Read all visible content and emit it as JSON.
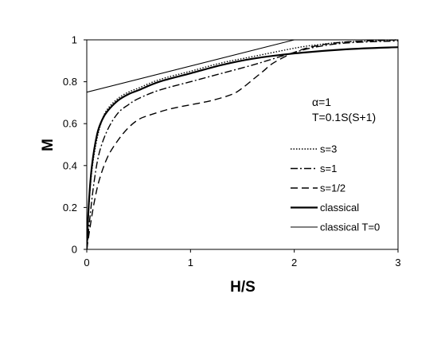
{
  "chart_data": {
    "type": "line",
    "xlabel": "H/S",
    "ylabel": "M",
    "xlim": [
      0,
      3
    ],
    "ylim": [
      0,
      1
    ],
    "xticks": [
      "0",
      "1",
      "2",
      "3"
    ],
    "yticks": [
      "0",
      "0.2",
      "0.4",
      "0.6",
      "0.8",
      "1"
    ],
    "grid": false,
    "legend_position": "right",
    "annotations": [
      "α=1",
      "T=0.1S(S+1)"
    ],
    "series": [
      {
        "name": "s=3",
        "style": "dotted",
        "x": [
          0,
          0.02,
          0.05,
          0.1,
          0.15,
          0.2,
          0.3,
          0.4,
          0.5,
          0.7,
          1.0,
          1.3,
          1.6,
          2.0,
          2.2,
          2.5,
          3.0
        ],
        "y": [
          0,
          0.2,
          0.38,
          0.53,
          0.62,
          0.67,
          0.72,
          0.75,
          0.77,
          0.81,
          0.85,
          0.89,
          0.92,
          0.96,
          0.975,
          0.99,
          1.0
        ]
      },
      {
        "name": "s=1",
        "style": "dashdot",
        "x": [
          0,
          0.03,
          0.07,
          0.12,
          0.2,
          0.3,
          0.4,
          0.5,
          0.7,
          1.0,
          1.3,
          1.6,
          1.8,
          2.0,
          2.2,
          2.5,
          3.0
        ],
        "y": [
          0,
          0.15,
          0.32,
          0.46,
          0.57,
          0.65,
          0.69,
          0.72,
          0.76,
          0.8,
          0.84,
          0.88,
          0.91,
          0.94,
          0.965,
          0.985,
          0.995
        ]
      },
      {
        "name": "s=1/2",
        "style": "dashed",
        "x": [
          0,
          0.03,
          0.07,
          0.12,
          0.2,
          0.3,
          0.4,
          0.5,
          0.6,
          0.8,
          1.0,
          1.2,
          1.4,
          1.5,
          1.6,
          1.7,
          1.8,
          2.0,
          2.2,
          2.5,
          3.0
        ],
        "y": [
          0,
          0.1,
          0.22,
          0.33,
          0.44,
          0.52,
          0.58,
          0.62,
          0.64,
          0.67,
          0.69,
          0.71,
          0.74,
          0.77,
          0.81,
          0.85,
          0.89,
          0.94,
          0.97,
          0.99,
          1.0
        ]
      },
      {
        "name": "classical",
        "style": "solid-thick",
        "x": [
          0,
          0.02,
          0.05,
          0.1,
          0.15,
          0.2,
          0.3,
          0.4,
          0.5,
          0.7,
          1.0,
          1.3,
          1.6,
          2.0,
          2.5,
          3.0
        ],
        "y": [
          0,
          0.22,
          0.4,
          0.55,
          0.62,
          0.66,
          0.71,
          0.74,
          0.76,
          0.8,
          0.84,
          0.88,
          0.91,
          0.935,
          0.955,
          0.965
        ]
      },
      {
        "name": "classical T=0",
        "style": "solid-thin",
        "x": [
          0,
          2.0,
          3.0
        ],
        "y": [
          0.75,
          1.0,
          1.0
        ]
      }
    ]
  }
}
